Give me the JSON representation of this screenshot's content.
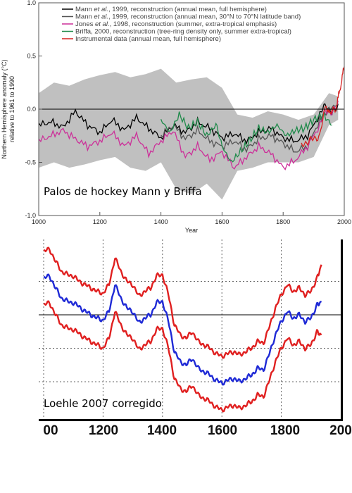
{
  "chart_data": [
    {
      "type": "line",
      "caption": "Palos de hockey Mann y Briffa",
      "xlabel": "Year",
      "ylabel_lines": [
        "Northern Hemisphere anomaly (°C)",
        "relative to 1961 to 1990"
      ],
      "xlim": [
        1000,
        2000
      ],
      "ylim": [
        -1.0,
        1.0
      ],
      "x_ticks": [
        "1000",
        "1200",
        "1400",
        "1600",
        "1800",
        "2000"
      ],
      "y_ticks": [
        "1.0",
        "0.5",
        "0.0",
        "-0.5",
        "-1.0"
      ],
      "grid": false,
      "zero_line": true,
      "legend_position": "top",
      "legend_entries": [
        {
          "color": "#000000",
          "parts": [
            {
              "text": "Mann ",
              "italic": false
            },
            {
              "text": "et al.",
              "italic": true
            },
            {
              "text": ", 1999, reconstruction (annual mean, full hemisphere)",
              "italic": false
            }
          ]
        },
        {
          "color": "#555555",
          "parts": [
            {
              "text": "Mann ",
              "italic": false
            },
            {
              "text": "et al.",
              "italic": true
            },
            {
              "text": ", 1999, reconstruction (annual mean, 30°N to 70°N latitude band)",
              "italic": false
            }
          ]
        },
        {
          "color": "#cc2f99",
          "parts": [
            {
              "text": "Jones ",
              "italic": false
            },
            {
              "text": "et al.",
              "italic": true
            },
            {
              "text": ", 1998, reconstruction (summer, extra-tropical emphasis)",
              "italic": false
            }
          ]
        },
        {
          "color": "#1f8a4a",
          "parts": [
            {
              "text": "Briffa, 2000, reconstruction (tree-ring density only, summer extra-tropical)",
              "italic": false
            }
          ]
        },
        {
          "color": "#d62020",
          "parts": [
            {
              "text": "Instrumental data (annual mean, full hemisphere)",
              "italic": false
            }
          ]
        }
      ],
      "uncertainty_band": {
        "color": "#c0c0c0",
        "x": [
          1000,
          1050,
          1100,
          1150,
          1200,
          1250,
          1300,
          1350,
          1400,
          1450,
          1500,
          1550,
          1600,
          1650,
          1700,
          1750,
          1800,
          1850,
          1900,
          1950,
          1980
        ],
        "upper": [
          0.15,
          0.25,
          0.22,
          0.28,
          0.32,
          0.35,
          0.3,
          0.33,
          0.38,
          0.25,
          0.28,
          0.3,
          0.2,
          -0.05,
          -0.08,
          -0.02,
          -0.05,
          -0.1,
          -0.05,
          0.15,
          0.12
        ],
        "lower": [
          -0.55,
          -0.5,
          -0.55,
          -0.52,
          -0.48,
          -0.45,
          -0.55,
          -0.58,
          -0.5,
          -0.75,
          -0.8,
          -0.7,
          -0.85,
          -0.58,
          -0.55,
          -0.5,
          -0.5,
          -0.5,
          -0.45,
          -0.15,
          -0.1
        ]
      },
      "series": [
        {
          "name": "Mann et al., 1999, reconstruction (annual mean, full hemisphere)",
          "color": "#000000",
          "x": [
            1000,
            1040,
            1080,
            1120,
            1160,
            1200,
            1240,
            1280,
            1320,
            1360,
            1400,
            1440,
            1480,
            1520,
            1560,
            1600,
            1640,
            1680,
            1720,
            1760,
            1800,
            1840,
            1880,
            1920,
            1940,
            1960,
            1980
          ],
          "y": [
            -0.15,
            -0.12,
            -0.17,
            -0.02,
            -0.15,
            -0.22,
            -0.1,
            -0.2,
            -0.08,
            -0.18,
            -0.27,
            -0.15,
            -0.22,
            -0.12,
            -0.18,
            -0.27,
            -0.23,
            -0.3,
            -0.22,
            -0.18,
            -0.27,
            -0.3,
            -0.25,
            -0.05,
            0.05,
            -0.05,
            0.05
          ]
        },
        {
          "name": "Mann et al., 1999, reconstruction (annual mean, 30°N to 70°N latitude band)",
          "color": "#555555",
          "x": [
            1400,
            1440,
            1480,
            1520,
            1560,
            1600,
            1640,
            1680,
            1720,
            1760,
            1800,
            1840,
            1880,
            1920,
            1950,
            1980
          ],
          "y": [
            -0.25,
            -0.15,
            -0.28,
            -0.2,
            -0.3,
            -0.35,
            -0.3,
            -0.38,
            -0.28,
            -0.25,
            -0.32,
            -0.4,
            -0.35,
            -0.1,
            0.0,
            0.05
          ]
        },
        {
          "name": "Jones et al., 1998, reconstruction (summer, extra-tropical emphasis)",
          "color": "#cc2f99",
          "x": [
            1000,
            1040,
            1080,
            1120,
            1160,
            1200,
            1240,
            1280,
            1320,
            1360,
            1400,
            1440,
            1480,
            1520,
            1560,
            1600,
            1640,
            1680,
            1720,
            1760,
            1800,
            1840,
            1880,
            1920,
            1940,
            1960,
            1980
          ],
          "y": [
            -0.3,
            -0.25,
            -0.2,
            -0.28,
            -0.35,
            -0.3,
            -0.22,
            -0.35,
            -0.25,
            -0.42,
            -0.3,
            -0.2,
            -0.45,
            -0.35,
            -0.48,
            -0.4,
            -0.55,
            -0.45,
            -0.35,
            -0.42,
            -0.55,
            -0.48,
            -0.35,
            -0.15,
            0.0,
            -0.05,
            0.08
          ]
        },
        {
          "name": "Briffa, 2000, reconstruction (tree-ring density only, summer extra-tropical)",
          "color": "#1f8a4a",
          "x": [
            1400,
            1430,
            1460,
            1490,
            1520,
            1550,
            1580,
            1600,
            1630,
            1660,
            1690,
            1720,
            1750,
            1780,
            1810,
            1840,
            1870,
            1900,
            1930,
            1960
          ],
          "y": [
            -0.1,
            -0.22,
            -0.05,
            -0.18,
            -0.12,
            -0.25,
            -0.15,
            -0.35,
            -0.5,
            -0.4,
            -0.3,
            -0.18,
            -0.22,
            -0.15,
            -0.25,
            -0.2,
            -0.18,
            -0.1,
            -0.05,
            -0.15
          ]
        },
        {
          "name": "Instrumental data (annual mean, full hemisphere)",
          "color": "#d62020",
          "x": [
            1860,
            1880,
            1900,
            1920,
            1940,
            1950,
            1960,
            1970,
            1980,
            1990,
            2000
          ],
          "y": [
            -0.35,
            -0.3,
            -0.28,
            -0.25,
            0.05,
            -0.05,
            0.0,
            -0.02,
            0.1,
            0.25,
            0.4
          ]
        }
      ]
    },
    {
      "type": "line",
      "caption": "Loehle 2007 corregido",
      "xlim": [
        1000,
        2000
      ],
      "x_ticks": [
        "00",
        "1200",
        "1400",
        "1600",
        "1800",
        "200"
      ],
      "grid": true,
      "zero_line": true,
      "series": [
        {
          "color": "#e02020",
          "x": [
            1000,
            1020,
            1040,
            1060,
            1080,
            1100,
            1120,
            1140,
            1160,
            1180,
            1200,
            1220,
            1240,
            1260,
            1280,
            1300,
            1320,
            1340,
            1360,
            1380,
            1400,
            1420,
            1440,
            1460,
            1480,
            1500,
            1520,
            1540,
            1560,
            1580,
            1600,
            1620,
            1640,
            1660,
            1680,
            1700,
            1720,
            1740,
            1760,
            1780,
            1800,
            1820,
            1840,
            1860,
            1880,
            1900,
            1920,
            1935
          ],
          "y": [
            0.95,
            0.98,
            0.8,
            0.65,
            0.6,
            0.58,
            0.5,
            0.45,
            0.4,
            0.35,
            0.32,
            0.45,
            0.85,
            0.65,
            0.5,
            0.45,
            0.28,
            0.35,
            0.4,
            0.58,
            0.6,
            0.3,
            -0.15,
            -0.3,
            -0.35,
            -0.25,
            -0.4,
            -0.45,
            -0.5,
            -0.58,
            -0.62,
            -0.58,
            -0.55,
            -0.6,
            -0.55,
            -0.5,
            -0.4,
            -0.42,
            -0.18,
            0.1,
            0.3,
            0.45,
            0.35,
            0.4,
            0.3,
            0.35,
            0.55,
            0.75
          ]
        },
        {
          "color": "#1f2ad6",
          "x": [
            1000,
            1020,
            1040,
            1060,
            1080,
            1100,
            1120,
            1140,
            1160,
            1180,
            1200,
            1220,
            1240,
            1260,
            1280,
            1300,
            1320,
            1340,
            1360,
            1380,
            1400,
            1420,
            1440,
            1460,
            1480,
            1500,
            1520,
            1540,
            1560,
            1580,
            1600,
            1620,
            1640,
            1660,
            1680,
            1700,
            1720,
            1740,
            1760,
            1780,
            1800,
            1820,
            1840,
            1860,
            1880,
            1900,
            1920,
            1935
          ],
          "y": [
            0.55,
            0.58,
            0.4,
            0.25,
            0.2,
            0.18,
            0.12,
            0.05,
            0.0,
            -0.05,
            -0.08,
            0.05,
            0.45,
            0.25,
            0.1,
            0.05,
            -0.12,
            -0.05,
            0.0,
            0.18,
            0.2,
            -0.1,
            -0.55,
            -0.7,
            -0.75,
            -0.65,
            -0.8,
            -0.85,
            -0.9,
            -0.98,
            -1.02,
            -0.98,
            -0.95,
            -1.0,
            -0.95,
            -0.9,
            -0.8,
            -0.82,
            -0.58,
            -0.3,
            -0.1,
            0.05,
            -0.05,
            0.0,
            -0.1,
            -0.05,
            0.15,
            0.2
          ]
        },
        {
          "color": "#e02020",
          "x": [
            1000,
            1020,
            1040,
            1060,
            1080,
            1100,
            1120,
            1140,
            1160,
            1180,
            1200,
            1220,
            1240,
            1260,
            1280,
            1300,
            1320,
            1340,
            1360,
            1380,
            1400,
            1420,
            1440,
            1460,
            1480,
            1500,
            1520,
            1540,
            1560,
            1580,
            1600,
            1620,
            1640,
            1660,
            1680,
            1700,
            1720,
            1740,
            1760,
            1780,
            1800,
            1820,
            1840,
            1860,
            1880,
            1900,
            1920,
            1935
          ],
          "y": [
            0.15,
            0.18,
            0.0,
            -0.15,
            -0.2,
            -0.22,
            -0.28,
            -0.35,
            -0.4,
            -0.45,
            -0.5,
            -0.35,
            0.05,
            -0.15,
            -0.3,
            -0.35,
            -0.52,
            -0.45,
            -0.4,
            -0.22,
            -0.2,
            -0.5,
            -0.95,
            -1.1,
            -1.15,
            -1.05,
            -1.2,
            -1.25,
            -1.3,
            -1.38,
            -1.42,
            -1.38,
            -1.35,
            -1.4,
            -1.35,
            -1.3,
            -1.2,
            -1.22,
            -0.98,
            -0.7,
            -0.5,
            -0.35,
            -0.45,
            -0.4,
            -0.5,
            -0.45,
            -0.25,
            -0.3
          ]
        }
      ]
    }
  ]
}
